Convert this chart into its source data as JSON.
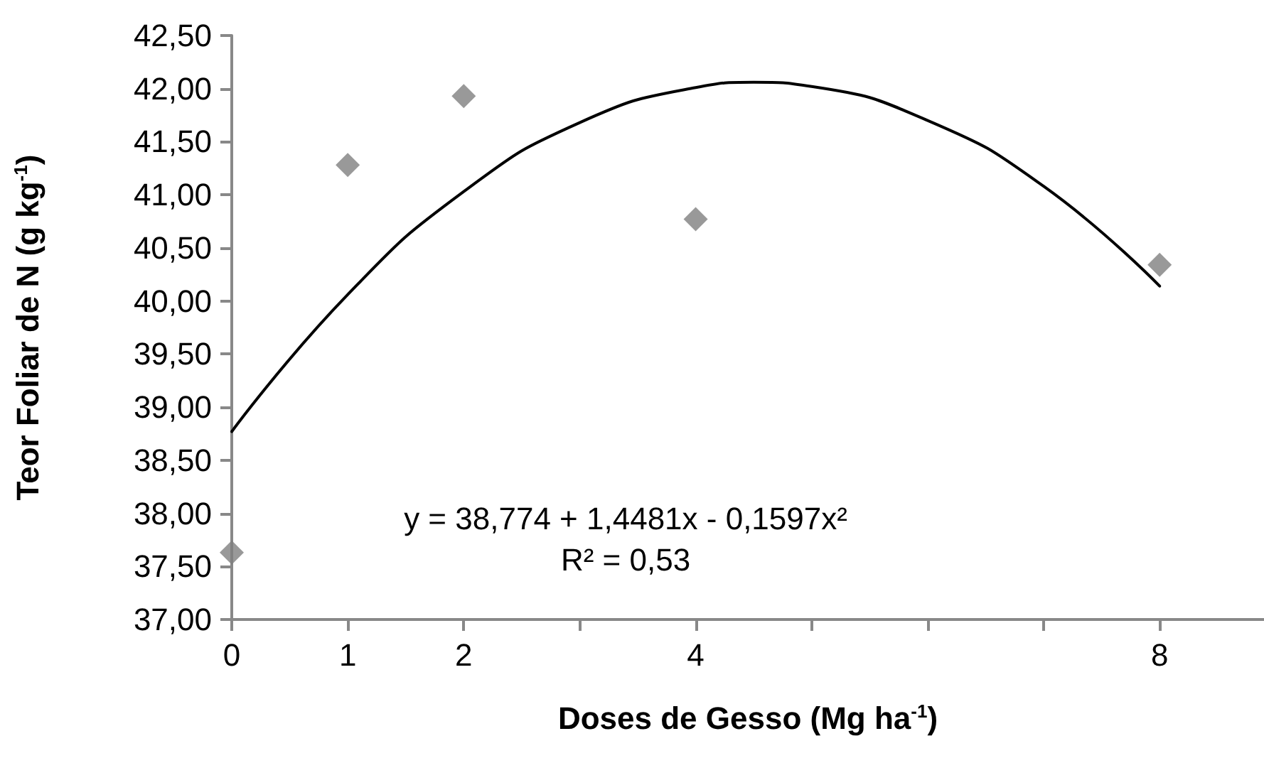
{
  "chart_data": {
    "type": "scatter",
    "xlabel": "Doses de Gesso (Mg ha$^{-1}$)",
    "ylabel": "Teor Foliar de N (g kg$^{-1}$)",
    "series": [
      {
        "type": "scatter",
        "color": "#808080",
        "marker": "diamond",
        "x": [
          0,
          1,
          2,
          4,
          8
        ],
        "values": [
          37.63,
          41.28,
          41.93,
          40.77,
          40.34
        ]
      },
      {
        "type": "line",
        "color": "#000000",
        "marker": "none",
        "line_style": "solid",
        "x": [
          0,
          1,
          2,
          3,
          4,
          4.5,
          5,
          6,
          7,
          8
        ],
        "values": [
          38.77,
          40.06,
          41.03,
          41.68,
          42.01,
          42.06,
          42.02,
          41.7,
          41.08,
          40.14
        ]
      }
    ],
    "xlim": [
      0,
      8.9
    ],
    "xticks": [
      0,
      1,
      2,
      {
        "value": 3,
        "label": null
      },
      4,
      {
        "value": 5,
        "label": null
      },
      {
        "value": 6,
        "label": null
      },
      {
        "value": 7,
        "label": null
      },
      8
    ],
    "ylim": [
      37,
      42.5
    ],
    "yticks": [
      {
        "value": 37,
        "label": "37,00"
      },
      {
        "value": 37.5,
        "label": "37,50"
      },
      {
        "value": 38,
        "label": "38,00"
      },
      {
        "value": 38.5,
        "label": "38,50"
      },
      {
        "value": 39,
        "label": "39,00"
      },
      {
        "value": 39.5,
        "label": "39,50"
      },
      {
        "value": 40,
        "label": "40,00"
      },
      {
        "value": 40.5,
        "label": "40,50"
      },
      {
        "value": 41,
        "label": "41,00"
      },
      {
        "value": 41.5,
        "label": "41,50"
      },
      {
        "value": 42,
        "label": "42,00"
      },
      {
        "value": 42.5,
        "label": "42,50"
      }
    ],
    "annotations": [
      "y = 38,774 + 1,4481x - 0,1597x²",
      "R² = 0,53"
    ],
    "grid": false
  }
}
